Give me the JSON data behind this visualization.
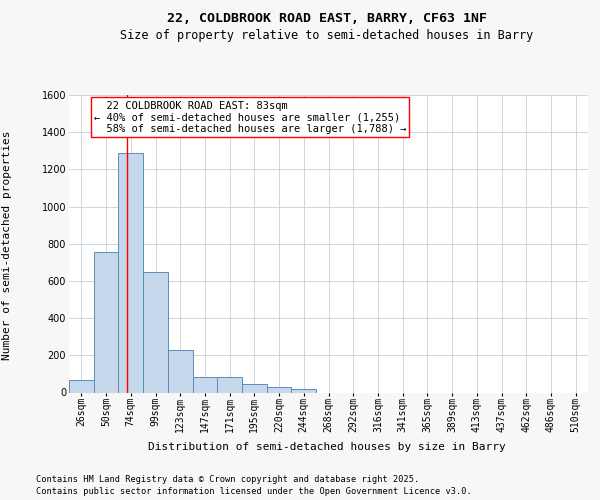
{
  "title_line1": "22, COLDBROOK ROAD EAST, BARRY, CF63 1NF",
  "title_line2": "Size of property relative to semi-detached houses in Barry",
  "xlabel": "Distribution of semi-detached houses by size in Barry",
  "ylabel": "Number of semi-detached properties",
  "categories": [
    "26sqm",
    "50sqm",
    "74sqm",
    "99sqm",
    "123sqm",
    "147sqm",
    "171sqm",
    "195sqm",
    "220sqm",
    "244sqm",
    "268sqm",
    "292sqm",
    "316sqm",
    "341sqm",
    "365sqm",
    "389sqm",
    "413sqm",
    "437sqm",
    "462sqm",
    "486sqm",
    "510sqm"
  ],
  "bar_heights": [
    65,
    755,
    1290,
    650,
    230,
    85,
    85,
    45,
    30,
    20,
    0,
    0,
    0,
    0,
    0,
    0,
    0,
    0,
    0,
    0,
    0
  ],
  "bar_color": "#c5d8ec",
  "bar_edge_color": "#5b8db8",
  "bar_edge_width": 0.7,
  "ylim_max": 1600,
  "ytick_step": 200,
  "property_sqm": 83,
  "bin_starts": [
    26,
    50,
    74,
    99,
    123,
    147,
    171,
    195,
    220,
    244,
    268,
    292,
    316,
    341,
    365,
    389,
    413,
    437,
    462,
    486,
    510,
    534
  ],
  "property_label": "22 COLDBROOK ROAD EAST: 83sqm",
  "pct_smaller": 40,
  "count_smaller": 1255,
  "pct_larger": 58,
  "count_larger": 1788,
  "bg_color": "#f7f7f7",
  "plot_bg_color": "#ffffff",
  "grid_color": "#c8d0d8",
  "footer_line1": "Contains HM Land Registry data © Crown copyright and database right 2025.",
  "footer_line2": "Contains public sector information licensed under the Open Government Licence v3.0.",
  "title_fontsize": 9.5,
  "subtitle_fontsize": 8.5,
  "axis_label_fontsize": 8,
  "tick_fontsize": 7,
  "annotation_fontsize": 7.5,
  "footer_fontsize": 6.2
}
